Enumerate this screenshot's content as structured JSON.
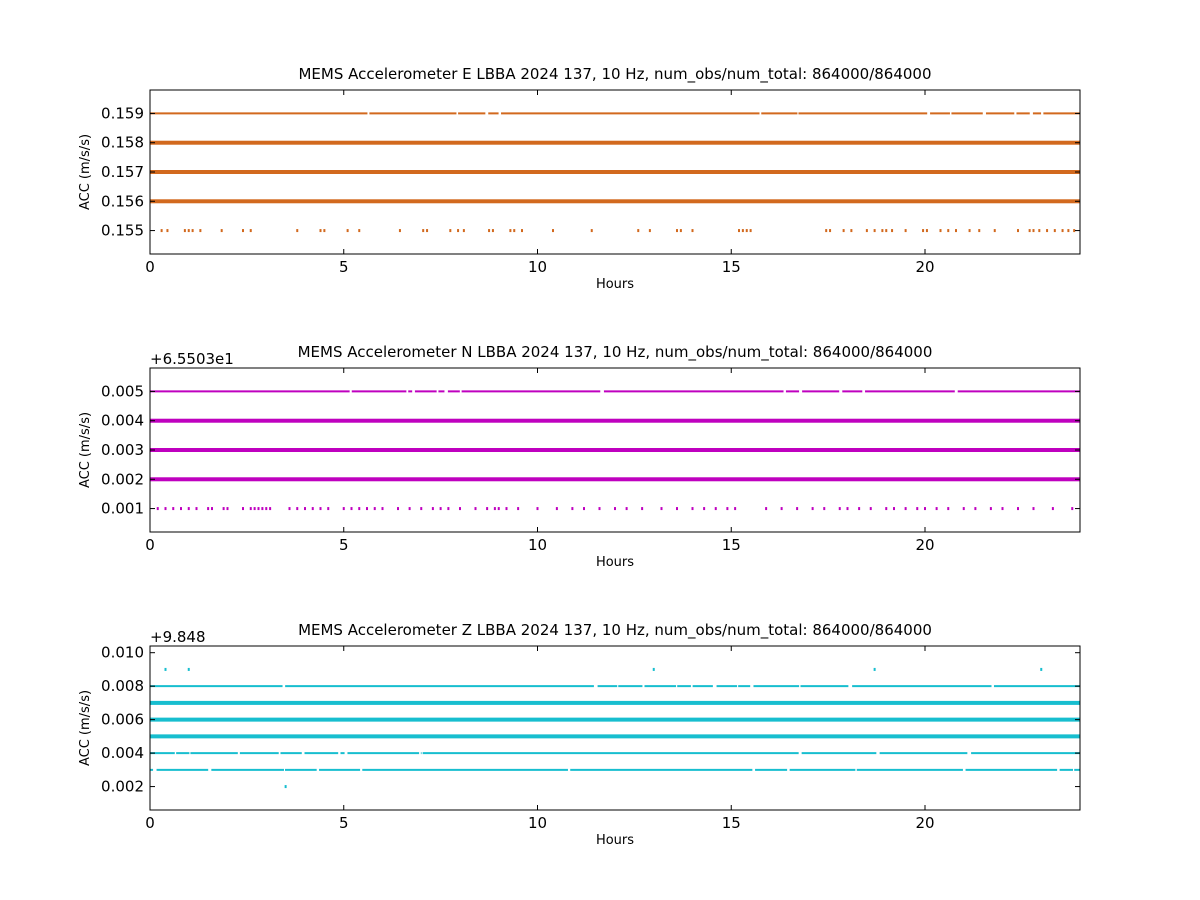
{
  "chart_data": [
    {
      "type": "scatter",
      "title": "MEMS Accelerometer E LBBA 2024 137, 10 Hz, num_obs/num_total: 864000/864000",
      "xlabel": "Hours",
      "ylabel": "ACC (m/s/s)",
      "offset_text": "",
      "xlim": [
        0,
        24
      ],
      "ylim": [
        0.1542,
        0.1598
      ],
      "xticks": [
        0,
        5,
        10,
        15,
        20
      ],
      "xtick_labels": [
        "0",
        "5",
        "10",
        "15",
        "20"
      ],
      "yticks": [
        0.155,
        0.156,
        0.157,
        0.158,
        0.159
      ],
      "ytick_labels": [
        "0.155",
        "0.156",
        "0.157",
        "0.158",
        "0.159"
      ],
      "color": "#d2691e",
      "grid": false,
      "series": [
        {
          "level": 0.159,
          "density": "dense"
        },
        {
          "level": 0.158,
          "density": "solid"
        },
        {
          "level": 0.157,
          "density": "solid"
        },
        {
          "level": 0.156,
          "density": "solid"
        },
        {
          "level": 0.155,
          "density": "sparse",
          "x": [
            0.3,
            0.45,
            0.9,
            1.0,
            1.1,
            1.3,
            1.85,
            2.4,
            2.6,
            3.8,
            4.4,
            4.5,
            5.1,
            5.4,
            6.45,
            7.05,
            7.15,
            7.75,
            7.95,
            8.1,
            8.75,
            8.85,
            9.3,
            9.4,
            9.6,
            10.4,
            11.4,
            12.6,
            12.9,
            13.6,
            13.7,
            14.0,
            15.2,
            15.3,
            15.4,
            15.5,
            17.45,
            17.55,
            17.9,
            18.1,
            18.5,
            18.7,
            18.9,
            19.0,
            19.15,
            19.5,
            19.95,
            20.05,
            20.4,
            20.6,
            20.8,
            21.15,
            21.4,
            21.8,
            22.4,
            22.7,
            22.8,
            22.95,
            23.15,
            23.35,
            23.55,
            23.7,
            23.85
          ]
        }
      ]
    },
    {
      "type": "scatter",
      "title": "MEMS Accelerometer N LBBA 2024 137, 10 Hz, num_obs/num_total: 864000/864000",
      "xlabel": "Hours",
      "ylabel": "ACC (m/s/s)",
      "offset_text": "+6.5503e1",
      "xlim": [
        0,
        24
      ],
      "ylim": [
        0.0002,
        0.0058
      ],
      "xticks": [
        0,
        5,
        10,
        15,
        20
      ],
      "xtick_labels": [
        "0",
        "5",
        "10",
        "15",
        "20"
      ],
      "yticks": [
        0.001,
        0.002,
        0.003,
        0.004,
        0.005
      ],
      "ytick_labels": [
        "0.001",
        "0.002",
        "0.003",
        "0.004",
        "0.005"
      ],
      "color": "#bf00bf",
      "grid": false,
      "series": [
        {
          "level": 0.005,
          "density": "dense"
        },
        {
          "level": 0.004,
          "density": "solid"
        },
        {
          "level": 0.003,
          "density": "solid"
        },
        {
          "level": 0.002,
          "density": "solid"
        },
        {
          "level": 0.001,
          "density": "sparse",
          "x": [
            0.2,
            0.4,
            0.6,
            0.8,
            1.0,
            1.2,
            1.5,
            1.6,
            1.9,
            2.0,
            2.4,
            2.6,
            2.7,
            2.8,
            2.9,
            3.0,
            3.1,
            3.6,
            3.8,
            4.0,
            4.2,
            4.4,
            4.6,
            5.0,
            5.2,
            5.4,
            5.6,
            5.8,
            6.0,
            6.4,
            6.7,
            7.0,
            7.3,
            7.5,
            7.7,
            8.0,
            8.4,
            8.7,
            8.9,
            9.0,
            9.2,
            9.5,
            10.0,
            10.5,
            10.9,
            11.2,
            11.6,
            12.0,
            12.3,
            12.7,
            13.2,
            13.6,
            14.0,
            14.3,
            14.6,
            14.9,
            15.1,
            15.9,
            16.3,
            16.7,
            17.1,
            17.4,
            17.8,
            18.0,
            18.3,
            18.6,
            19.0,
            19.2,
            19.5,
            19.8,
            20.0,
            20.3,
            20.6,
            21.0,
            21.3,
            21.7,
            22.0,
            22.4,
            22.8,
            23.3,
            23.8
          ]
        }
      ]
    },
    {
      "type": "scatter",
      "title": "MEMS Accelerometer Z LBBA 2024 137, 10 Hz, num_obs/num_total: 864000/864000",
      "xlabel": "Hours",
      "ylabel": "ACC (m/s/s)",
      "offset_text": "+9.848",
      "xlim": [
        0,
        24
      ],
      "ylim": [
        0.0006,
        0.0104
      ],
      "xticks": [
        0,
        5,
        10,
        15,
        20
      ],
      "xtick_labels": [
        "0",
        "5",
        "10",
        "15",
        "20"
      ],
      "yticks": [
        0.002,
        0.004,
        0.006,
        0.008,
        0.01
      ],
      "ytick_labels": [
        "0.002",
        "0.004",
        "0.006",
        "0.008",
        "0.010"
      ],
      "color": "#17becf",
      "grid": false,
      "series": [
        {
          "level": 0.009,
          "density": "sparse",
          "x": [
            0.4,
            1.0,
            13.0,
            18.7,
            23.0
          ]
        },
        {
          "level": 0.008,
          "density": "dense"
        },
        {
          "level": 0.007,
          "density": "solid"
        },
        {
          "level": 0.006,
          "density": "solid"
        },
        {
          "level": 0.005,
          "density": "solid"
        },
        {
          "level": 0.004,
          "density": "dense"
        },
        {
          "level": 0.003,
          "density": "dense"
        },
        {
          "level": 0.002,
          "density": "sparse",
          "x": [
            3.5
          ]
        }
      ]
    }
  ]
}
